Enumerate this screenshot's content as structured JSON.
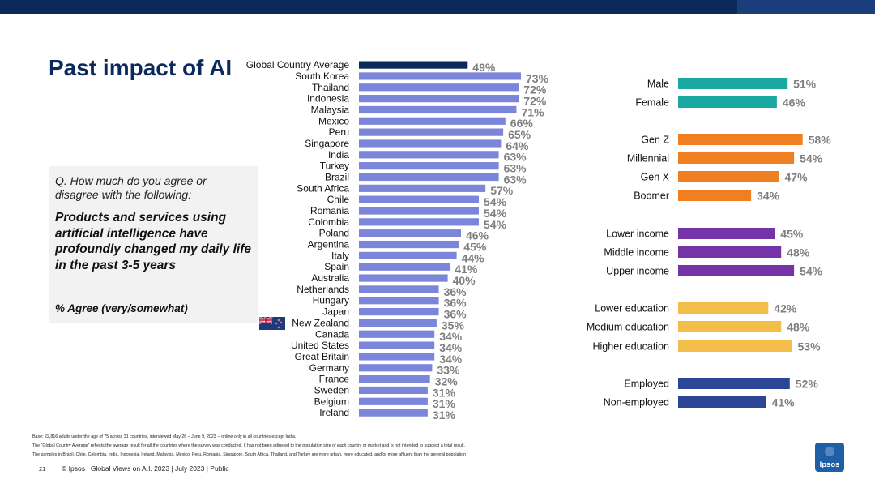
{
  "title": "Past impact of AI",
  "question": "Q. How much do you agree or disagree with the following:",
  "statement": "Products and services using artificial intelligence have profoundly changed my daily life in the past 3-5 years",
  "measure": "% Agree (very/somewhat)",
  "footer": {
    "base": "Base: 22,816 adults under the age of 75 across 31 countries, interviewed May 26 – June 9, 2023 -- online only in all countries except India.",
    "note1": "The “Global Country Average” reflects the average result for all the countries where the survey was conducted. It has not been adjusted to the population size of each country or market and is not intended to suggest a total result.",
    "note2": "The samples in Brazil, Chile, Colombia, India, Indonesia, Ireland, Malaysia, Mexico, Peru, Romania, Singapore, South Africa, Thailand, and Turkey are more urban, more educated, and/or more affluent than the general population",
    "page": "21",
    "copyright": "© Ipsos | Global Views on A.I. 2023 | July 2023 | Public"
  },
  "logo": {
    "text": "Ipsos",
    "color": "#1f5fa8"
  },
  "flag_icon": "new-zealand-flag-icon",
  "colors": {
    "global": "#0b2a5b",
    "countries": "#7b85d9",
    "gender": "#19a9a0",
    "generation": "#f07f22",
    "income": "#7434a8",
    "education": "#f2bd48",
    "employment": "#2c4596",
    "value_text": "#7f7f7f"
  },
  "chart_data": [
    {
      "type": "bar",
      "orientation": "horizontal",
      "title": "Past impact of AI",
      "unit": "%",
      "xlim": [
        0,
        100
      ],
      "categories": [
        "Global Country Average",
        "South Korea",
        "Thailand",
        "Indonesia",
        "Malaysia",
        "Mexico",
        "Peru",
        "Singapore",
        "India",
        "Turkey",
        "Brazil",
        "South Africa",
        "Chile",
        "Romania",
        "Colombia",
        "Poland",
        "Argentina",
        "Italy",
        "Spain",
        "Australia",
        "Netherlands",
        "Hungary",
        "Japan",
        "New Zealand",
        "Canada",
        "United States",
        "Great Britain",
        "Germany",
        "France",
        "Sweden",
        "Belgium",
        "Ireland"
      ],
      "values": [
        49,
        73,
        72,
        72,
        71,
        66,
        65,
        64,
        63,
        63,
        63,
        57,
        54,
        54,
        54,
        46,
        45,
        44,
        41,
        40,
        36,
        36,
        36,
        35,
        34,
        34,
        34,
        33,
        32,
        31,
        31,
        31
      ],
      "labels": [
        "49%",
        "73%",
        "72%",
        "72%",
        "71%",
        "66%",
        "65%",
        "64%",
        "63%",
        "63%",
        "63%",
        "57%",
        "54%",
        "54%",
        "54%",
        "46%",
        "45%",
        "44%",
        "41%",
        "40%",
        "36%",
        "36%",
        "36%",
        "35%",
        "34%",
        "34%",
        "34%",
        "33%",
        "32%",
        "31%",
        "31%",
        "31%"
      ]
    },
    {
      "type": "bar",
      "orientation": "horizontal",
      "unit": "%",
      "xlim": [
        0,
        100
      ],
      "groups": [
        {
          "name": "gender",
          "categories": [
            "Male",
            "Female"
          ],
          "values": [
            51,
            46
          ],
          "labels": [
            "51%",
            "46%"
          ]
        },
        {
          "name": "generation",
          "categories": [
            "Gen Z",
            "Millennial",
            "Gen X",
            "Boomer"
          ],
          "values": [
            58,
            54,
            47,
            34
          ],
          "labels": [
            "58%",
            "54%",
            "47%",
            "34%"
          ]
        },
        {
          "name": "income",
          "categories": [
            "Lower income",
            "Middle income",
            "Upper income"
          ],
          "values": [
            45,
            48,
            54
          ],
          "labels": [
            "45%",
            "48%",
            "54%"
          ]
        },
        {
          "name": "education",
          "categories": [
            "Lower education",
            "Medium education",
            "Higher education"
          ],
          "values": [
            42,
            48,
            53
          ],
          "labels": [
            "42%",
            "48%",
            "53%"
          ]
        },
        {
          "name": "employment",
          "categories": [
            "Employed",
            "Non-employed"
          ],
          "values": [
            52,
            41
          ],
          "labels": [
            "52%",
            "41%"
          ]
        }
      ]
    }
  ]
}
